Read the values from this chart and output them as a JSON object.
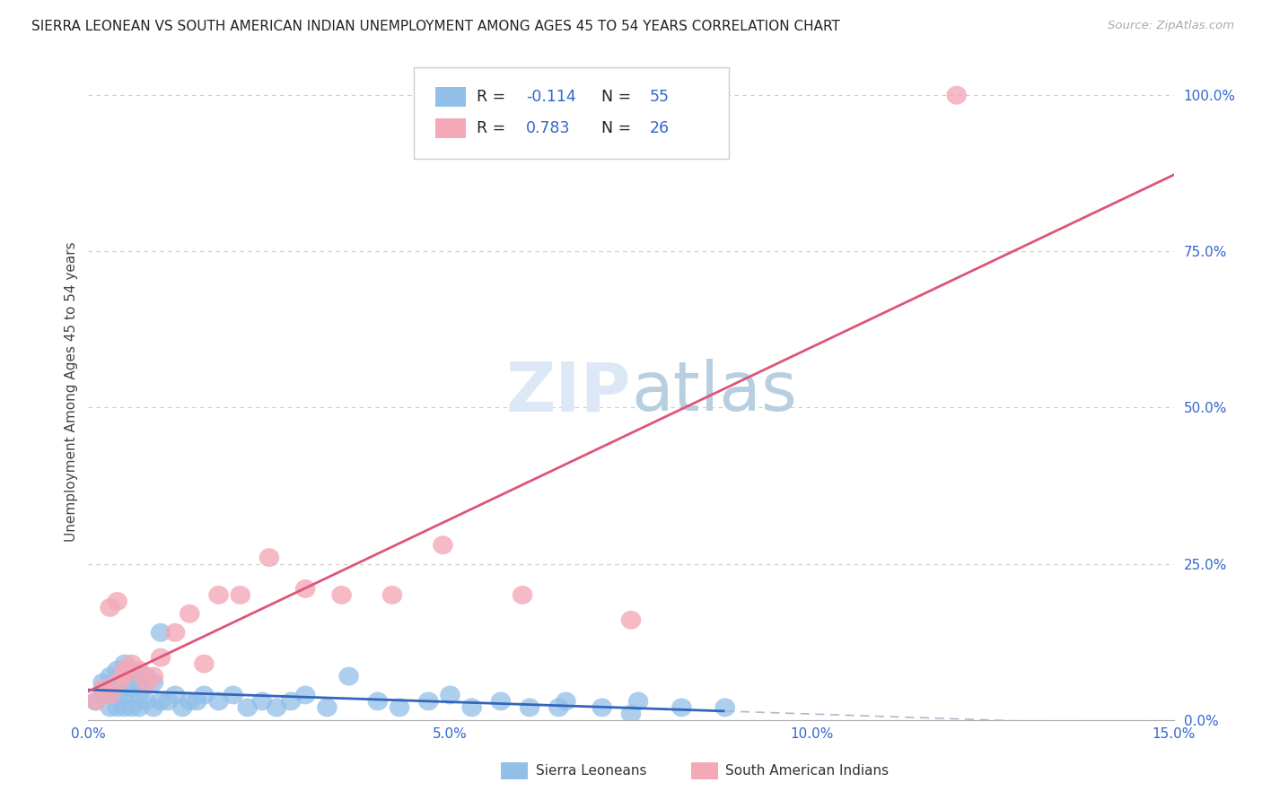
{
  "title": "SIERRA LEONEAN VS SOUTH AMERICAN INDIAN UNEMPLOYMENT AMONG AGES 45 TO 54 YEARS CORRELATION CHART",
  "source": "Source: ZipAtlas.com",
  "ylabel": "Unemployment Among Ages 45 to 54 years",
  "xlim": [
    0.0,
    0.15
  ],
  "ylim": [
    0.0,
    1.05
  ],
  "xticks": [
    0.0,
    0.05,
    0.1,
    0.15
  ],
  "xticklabels": [
    "0.0%",
    "5.0%",
    "10.0%",
    "15.0%"
  ],
  "yticks": [
    0.0,
    0.25,
    0.5,
    0.75,
    1.0
  ],
  "yticklabels": [
    "0.0%",
    "25.0%",
    "50.0%",
    "75.0%",
    "100.0%"
  ],
  "sierra_color": "#92c0e8",
  "south_american_color": "#f4a8b8",
  "sierra_R": -0.114,
  "sierra_N": 55,
  "south_american_R": 0.783,
  "south_american_N": 26,
  "background": "#ffffff",
  "grid_color": "#cccccc",
  "watermark_zip": "ZIP",
  "watermark_atlas": "atlas",
  "legend_r1": "R = ",
  "legend_val1": "-0.114",
  "legend_n1": "N = ",
  "legend_nval1": "55",
  "legend_r2": "R = ",
  "legend_val2": "0.783",
  "legend_n2": "N = ",
  "legend_nval2": "26",
  "legend_text_color": "#222222",
  "legend_num_color": "#3366cc",
  "sl_reg_slope": -0.3,
  "sl_reg_intercept": 0.048,
  "sa_reg_slope": 4.5,
  "sa_reg_intercept": -0.02,
  "sierra_x": [
    0.001,
    0.002,
    0.002,
    0.003,
    0.003,
    0.003,
    0.004,
    0.004,
    0.004,
    0.004,
    0.005,
    0.005,
    0.005,
    0.005,
    0.006,
    0.006,
    0.006,
    0.007,
    0.007,
    0.007,
    0.008,
    0.008,
    0.009,
    0.009,
    0.01,
    0.01,
    0.011,
    0.012,
    0.013,
    0.014,
    0.015,
    0.016,
    0.018,
    0.02,
    0.022,
    0.024,
    0.026,
    0.028,
    0.03,
    0.033,
    0.036,
    0.04,
    0.043,
    0.047,
    0.05,
    0.053,
    0.057,
    0.061,
    0.066,
    0.071,
    0.076,
    0.082,
    0.088,
    0.065,
    0.075
  ],
  "sierra_y": [
    0.03,
    0.04,
    0.06,
    0.02,
    0.05,
    0.07,
    0.02,
    0.04,
    0.06,
    0.08,
    0.02,
    0.04,
    0.07,
    0.09,
    0.02,
    0.05,
    0.08,
    0.02,
    0.04,
    0.06,
    0.03,
    0.07,
    0.02,
    0.06,
    0.03,
    0.14,
    0.03,
    0.04,
    0.02,
    0.03,
    0.03,
    0.04,
    0.03,
    0.04,
    0.02,
    0.03,
    0.02,
    0.03,
    0.04,
    0.02,
    0.07,
    0.03,
    0.02,
    0.03,
    0.04,
    0.02,
    0.03,
    0.02,
    0.03,
    0.02,
    0.03,
    0.02,
    0.02,
    0.02,
    0.01
  ],
  "south_x": [
    0.001,
    0.002,
    0.003,
    0.003,
    0.004,
    0.004,
    0.005,
    0.005,
    0.006,
    0.007,
    0.008,
    0.009,
    0.01,
    0.012,
    0.014,
    0.016,
    0.018,
    0.021,
    0.025,
    0.03,
    0.035,
    0.042,
    0.049,
    0.06,
    0.075,
    0.12
  ],
  "south_y": [
    0.03,
    0.05,
    0.04,
    0.18,
    0.06,
    0.19,
    0.07,
    0.08,
    0.09,
    0.08,
    0.06,
    0.07,
    0.1,
    0.14,
    0.17,
    0.09,
    0.2,
    0.2,
    0.26,
    0.21,
    0.2,
    0.2,
    0.28,
    0.2,
    0.16,
    1.0
  ]
}
